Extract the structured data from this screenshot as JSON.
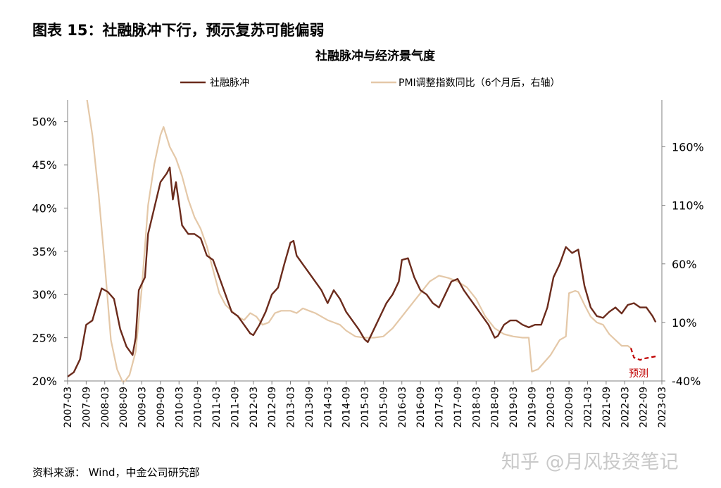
{
  "figure_title": "图表 15：社融脉冲下行，预示复苏可能偏弱",
  "source": "资料来源： Wind，中金公司研究部",
  "watermark": "知乎 @月风投资笔记",
  "colors": {
    "left_series": "#6b2b1c",
    "right_series": "#e4c8a8",
    "forecast": "#c00000",
    "axis": "#7f7f7f"
  },
  "chart_data": {
    "type": "line",
    "title": "社融脉冲与经济景气度",
    "left_axis": {
      "ylim": [
        20,
        52.5
      ],
      "ticks": [
        20,
        25,
        30,
        35,
        40,
        45,
        50
      ],
      "tick_labels": [
        "20%",
        "25%",
        "30%",
        "35%",
        "40%",
        "45%",
        "50%"
      ]
    },
    "right_axis": {
      "ylim": [
        -40,
        200
      ],
      "ticks": [
        -40,
        10,
        60,
        110,
        160
      ],
      "tick_labels": [
        "-40%",
        "10%",
        "60%",
        "110%",
        "160%"
      ]
    },
    "x_range": [
      "2007-03",
      "2023-03"
    ],
    "x_tick_labels": [
      "2007-03",
      "2007-09",
      "2008-03",
      "2008-09",
      "2009-03",
      "2009-09",
      "2010-03",
      "2010-09",
      "2011-03",
      "2011-09",
      "2012-03",
      "2012-09",
      "2013-03",
      "2013-09",
      "2014-03",
      "2014-09",
      "2015-03",
      "2015-09",
      "2016-03",
      "2016-09",
      "2017-03",
      "2017-09",
      "2018-03",
      "2018-09",
      "2019-03",
      "2019-09",
      "2020-03",
      "2020-09",
      "2021-03",
      "2021-09",
      "2022-03",
      "2022-09",
      "2023-03"
    ],
    "legend_position": "top",
    "annotation": "预测",
    "series": [
      {
        "name": "社融脉冲",
        "axis": "left",
        "points": [
          [
            "2007-03",
            20.5
          ],
          [
            "2007-05",
            21.0
          ],
          [
            "2007-07",
            22.5
          ],
          [
            "2007-09",
            26.5
          ],
          [
            "2007-11",
            27.0
          ],
          [
            "2008-01",
            29.5
          ],
          [
            "2008-02",
            30.7
          ],
          [
            "2008-04",
            30.3
          ],
          [
            "2008-06",
            29.5
          ],
          [
            "2008-08",
            26.0
          ],
          [
            "2008-10",
            24.0
          ],
          [
            "2008-12",
            23.0
          ],
          [
            "2009-01",
            25.0
          ],
          [
            "2009-02",
            30.5
          ],
          [
            "2009-04",
            32.0
          ],
          [
            "2009-05",
            37.0
          ],
          [
            "2009-07",
            40.0
          ],
          [
            "2009-09",
            43.0
          ],
          [
            "2009-11",
            44.0
          ],
          [
            "2009-12",
            44.7
          ],
          [
            "2010-01",
            41.0
          ],
          [
            "2010-02",
            43.0
          ],
          [
            "2010-04",
            38.0
          ],
          [
            "2010-06",
            37.0
          ],
          [
            "2010-08",
            37.0
          ],
          [
            "2010-10",
            36.5
          ],
          [
            "2010-12",
            34.5
          ],
          [
            "2011-02",
            34.0
          ],
          [
            "2011-04",
            32.0
          ],
          [
            "2011-06",
            30.0
          ],
          [
            "2011-08",
            28.0
          ],
          [
            "2011-10",
            27.5
          ],
          [
            "2011-12",
            26.5
          ],
          [
            "2012-02",
            25.5
          ],
          [
            "2012-03",
            25.3
          ],
          [
            "2012-05",
            26.5
          ],
          [
            "2012-07",
            28.0
          ],
          [
            "2012-09",
            30.0
          ],
          [
            "2012-11",
            30.8
          ],
          [
            "2013-01",
            33.5
          ],
          [
            "2013-03",
            36.0
          ],
          [
            "2013-04",
            36.2
          ],
          [
            "2013-05",
            34.5
          ],
          [
            "2013-07",
            33.5
          ],
          [
            "2013-09",
            32.5
          ],
          [
            "2013-11",
            31.5
          ],
          [
            "2014-01",
            30.5
          ],
          [
            "2014-03",
            29.0
          ],
          [
            "2014-05",
            30.5
          ],
          [
            "2014-07",
            29.5
          ],
          [
            "2014-09",
            28.0
          ],
          [
            "2014-11",
            27.0
          ],
          [
            "2015-01",
            26.0
          ],
          [
            "2015-03",
            24.8
          ],
          [
            "2015-04",
            24.5
          ],
          [
            "2015-06",
            26.0
          ],
          [
            "2015-08",
            27.5
          ],
          [
            "2015-10",
            29.0
          ],
          [
            "2015-12",
            30.0
          ],
          [
            "2016-02",
            31.5
          ],
          [
            "2016-03",
            34.0
          ],
          [
            "2016-05",
            34.2
          ],
          [
            "2016-07",
            32.0
          ],
          [
            "2016-09",
            30.5
          ],
          [
            "2016-11",
            30.0
          ],
          [
            "2017-01",
            29.0
          ],
          [
            "2017-03",
            28.5
          ],
          [
            "2017-05",
            30.0
          ],
          [
            "2017-07",
            31.5
          ],
          [
            "2017-09",
            31.8
          ],
          [
            "2017-11",
            30.5
          ],
          [
            "2018-01",
            29.5
          ],
          [
            "2018-03",
            28.5
          ],
          [
            "2018-05",
            27.5
          ],
          [
            "2018-07",
            26.5
          ],
          [
            "2018-09",
            25.0
          ],
          [
            "2018-10",
            25.2
          ],
          [
            "2018-12",
            26.5
          ],
          [
            "2019-02",
            27.0
          ],
          [
            "2019-04",
            27.0
          ],
          [
            "2019-06",
            26.5
          ],
          [
            "2019-08",
            26.2
          ],
          [
            "2019-10",
            26.5
          ],
          [
            "2019-12",
            26.5
          ],
          [
            "2020-02",
            28.5
          ],
          [
            "2020-04",
            32.0
          ],
          [
            "2020-06",
            33.5
          ],
          [
            "2020-08",
            35.5
          ],
          [
            "2020-10",
            34.8
          ],
          [
            "2020-12",
            35.2
          ],
          [
            "2021-02",
            31.0
          ],
          [
            "2021-04",
            28.5
          ],
          [
            "2021-06",
            27.5
          ],
          [
            "2021-08",
            27.3
          ],
          [
            "2021-10",
            28.0
          ],
          [
            "2021-12",
            28.5
          ],
          [
            "2022-02",
            27.8
          ],
          [
            "2022-04",
            28.8
          ],
          [
            "2022-06",
            29.0
          ],
          [
            "2022-08",
            28.5
          ],
          [
            "2022-10",
            28.5
          ],
          [
            "2022-12",
            27.5
          ],
          [
            "2023-01",
            26.8
          ]
        ]
      },
      {
        "name": "PMI调整指数同比（6个月后，右轴）",
        "axis": "right",
        "points": [
          [
            "2007-09",
            205
          ],
          [
            "2007-11",
            170
          ],
          [
            "2008-01",
            120
          ],
          [
            "2008-03",
            60
          ],
          [
            "2008-05",
            -5
          ],
          [
            "2008-07",
            -30
          ],
          [
            "2008-09",
            -42
          ],
          [
            "2008-11",
            -35
          ],
          [
            "2009-01",
            -15
          ],
          [
            "2009-03",
            40
          ],
          [
            "2009-05",
            110
          ],
          [
            "2009-07",
            145
          ],
          [
            "2009-09",
            170
          ],
          [
            "2009-10",
            177
          ],
          [
            "2009-12",
            160
          ],
          [
            "2010-02",
            150
          ],
          [
            "2010-04",
            135
          ],
          [
            "2010-06",
            115
          ],
          [
            "2010-08",
            100
          ],
          [
            "2010-10",
            90
          ],
          [
            "2010-12",
            75
          ],
          [
            "2011-02",
            55
          ],
          [
            "2011-04",
            35
          ],
          [
            "2011-06",
            25
          ],
          [
            "2011-08",
            20
          ],
          [
            "2011-10",
            15
          ],
          [
            "2011-12",
            12
          ],
          [
            "2012-02",
            18
          ],
          [
            "2012-04",
            15
          ],
          [
            "2012-06",
            8
          ],
          [
            "2012-08",
            10
          ],
          [
            "2012-10",
            18
          ],
          [
            "2012-12",
            20
          ],
          [
            "2013-03",
            20
          ],
          [
            "2013-05",
            18
          ],
          [
            "2013-07",
            22
          ],
          [
            "2013-09",
            20
          ],
          [
            "2013-11",
            18
          ],
          [
            "2014-01",
            15
          ],
          [
            "2014-03",
            12
          ],
          [
            "2014-05",
            10
          ],
          [
            "2014-07",
            8
          ],
          [
            "2014-09",
            3
          ],
          [
            "2014-12",
            -2
          ],
          [
            "2015-03",
            -3
          ],
          [
            "2015-06",
            -3
          ],
          [
            "2015-09",
            -2
          ],
          [
            "2015-12",
            5
          ],
          [
            "2016-03",
            15
          ],
          [
            "2016-06",
            25
          ],
          [
            "2016-09",
            35
          ],
          [
            "2016-12",
            45
          ],
          [
            "2017-03",
            50
          ],
          [
            "2017-06",
            48
          ],
          [
            "2017-09",
            45
          ],
          [
            "2017-12",
            40
          ],
          [
            "2018-03",
            30
          ],
          [
            "2018-06",
            15
          ],
          [
            "2018-09",
            5
          ],
          [
            "2018-12",
            0
          ],
          [
            "2019-03",
            -2
          ],
          [
            "2019-06",
            -3
          ],
          [
            "2019-08",
            -3
          ],
          [
            "2019-09",
            -32
          ],
          [
            "2019-11",
            -30
          ],
          [
            "2019-12",
            -27
          ],
          [
            "2020-03",
            -18
          ],
          [
            "2020-06",
            -5
          ],
          [
            "2020-08",
            -2
          ],
          [
            "2020-09",
            35
          ],
          [
            "2020-11",
            37
          ],
          [
            "2020-12",
            36
          ],
          [
            "2021-02",
            25
          ],
          [
            "2021-04",
            15
          ],
          [
            "2021-06",
            10
          ],
          [
            "2021-08",
            8
          ],
          [
            "2021-10",
            0
          ],
          [
            "2021-12",
            -5
          ],
          [
            "2022-02",
            -10
          ],
          [
            "2022-04",
            -10
          ],
          [
            "2022-05",
            -12
          ]
        ]
      },
      {
        "name": "预测",
        "axis": "right",
        "style": "dashed",
        "points": [
          [
            "2022-05",
            -12
          ],
          [
            "2022-06",
            -20
          ],
          [
            "2022-08",
            -22
          ],
          [
            "2022-09",
            -21
          ],
          [
            "2022-11",
            -20
          ],
          [
            "2023-01",
            -19
          ]
        ]
      }
    ]
  }
}
